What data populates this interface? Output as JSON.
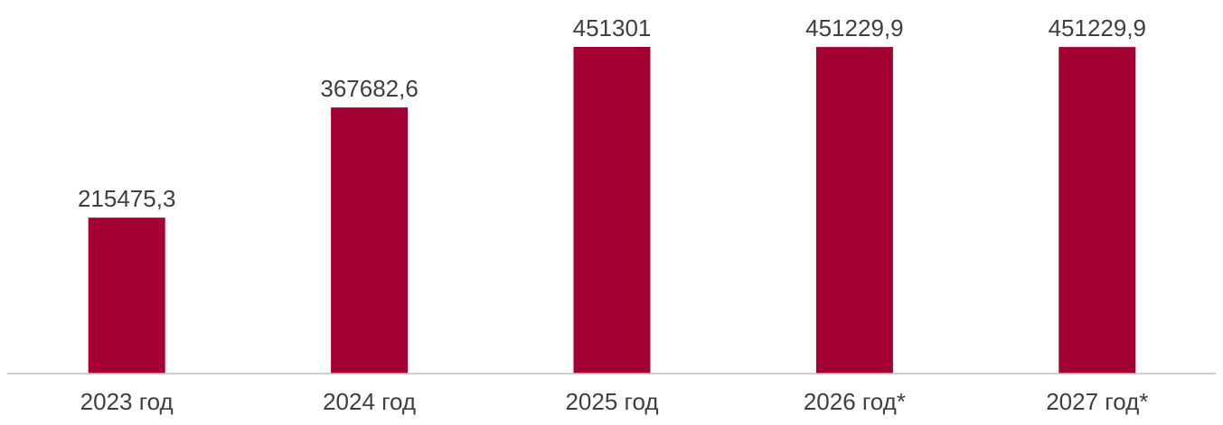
{
  "chart_data": {
    "type": "bar",
    "categories": [
      "2023 год",
      "2024 год",
      "2025 год",
      "2026 год*",
      "2027 год*"
    ],
    "values": [
      215475.3,
      367682.6,
      451301,
      451229.9,
      451229.9
    ],
    "data_labels": [
      "215475,3",
      "367682,6",
      "451301",
      "451229,9",
      "451229,9"
    ],
    "title": "",
    "xlabel": "",
    "ylabel": "",
    "ylim": [
      0,
      451301
    ],
    "grid": false,
    "legend": "none",
    "colors": {
      "bar": "#A50034",
      "axis": "#BFBFBF",
      "text": "#404040"
    }
  }
}
